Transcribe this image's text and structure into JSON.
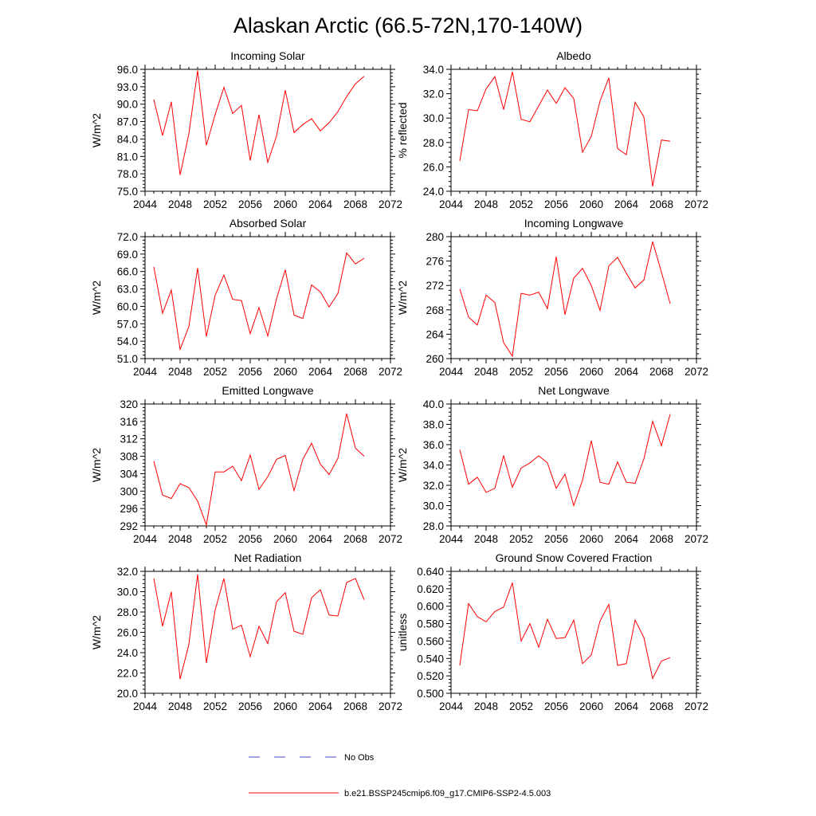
{
  "figure": {
    "title": "Alaskan Arctic (66.5-72N,170-140W)",
    "series_color": "#ff0000",
    "obs_color": "#4444cc"
  },
  "legend": {
    "items": [
      {
        "label": "No Obs",
        "style": "dashed",
        "color": "#4444cc"
      },
      {
        "label": "b.e21.BSSP245cmip6.f09_g17.CMIP6-SSP2-4.5.003",
        "style": "solid",
        "color": "#ff0000"
      }
    ]
  },
  "chart_data": [
    {
      "type": "line",
      "title": "Incoming Solar",
      "xlabel": "",
      "ylabel": "W/m^2",
      "xlim": [
        2044,
        2072
      ],
      "ylim": [
        75,
        96
      ],
      "xticks": [
        2044,
        2048,
        2052,
        2056,
        2060,
        2064,
        2068,
        2072
      ],
      "xtick_labels": [
        "2044",
        "2048",
        "2052",
        "2056",
        "2060",
        "2064",
        "2068",
        "2072"
      ],
      "yticks": [
        75,
        78,
        81,
        84,
        87,
        90,
        93,
        96
      ],
      "ytick_labels": [
        "75.0",
        "78.0",
        "81.0",
        "84.0",
        "87.0",
        "90.0",
        "93.0",
        "96.0"
      ],
      "x": [
        2045,
        2046,
        2047,
        2048,
        2049,
        2050,
        2051,
        2052,
        2053,
        2054,
        2055,
        2056,
        2057,
        2058,
        2059,
        2060,
        2061,
        2062,
        2063,
        2064,
        2065,
        2066,
        2067,
        2068,
        2069
      ],
      "series": [
        {
          "name": "b.e21.BSSP245cmip6.f09_g17.CMIP6-SSP2-4.5.003",
          "values": [
            90.8,
            84.6,
            90.4,
            77.8,
            84.9,
            95.8,
            82.9,
            88.2,
            92.9,
            88.4,
            89.8,
            80.3,
            88.2,
            80.0,
            84.5,
            92.4,
            85.1,
            86.5,
            87.5,
            85.4,
            86.8,
            88.7,
            91.3,
            93.5,
            94.8
          ]
        }
      ]
    },
    {
      "type": "line",
      "title": "Albedo",
      "xlabel": "",
      "ylabel": "% reflected",
      "xlim": [
        2044,
        2072
      ],
      "ylim": [
        24,
        34
      ],
      "xticks": [
        2044,
        2048,
        2052,
        2056,
        2060,
        2064,
        2068,
        2072
      ],
      "xtick_labels": [
        "2044",
        "2048",
        "2052",
        "2056",
        "2060",
        "2064",
        "2068",
        "2072"
      ],
      "yticks": [
        24,
        26,
        28,
        30,
        32,
        34
      ],
      "ytick_labels": [
        "24.0",
        "26.0",
        "28.0",
        "30.0",
        "32.0",
        "34.0"
      ],
      "x": [
        2045,
        2046,
        2047,
        2048,
        2049,
        2050,
        2051,
        2052,
        2053,
        2054,
        2055,
        2056,
        2057,
        2058,
        2059,
        2060,
        2061,
        2062,
        2063,
        2064,
        2065,
        2066,
        2067,
        2068,
        2069
      ],
      "series": [
        {
          "name": "b.e21.BSSP245cmip6.f09_g17.CMIP6-SSP2-4.5.003",
          "values": [
            26.5,
            30.7,
            30.6,
            32.4,
            33.4,
            30.7,
            33.8,
            29.9,
            29.7,
            31.0,
            32.3,
            31.2,
            32.5,
            31.6,
            27.2,
            28.5,
            31.4,
            33.3,
            27.5,
            27.0,
            31.3,
            30.1,
            24.4,
            28.2,
            28.1
          ]
        }
      ]
    },
    {
      "type": "line",
      "title": "Absorbed Solar",
      "xlabel": "",
      "ylabel": "W/m^2",
      "xlim": [
        2044,
        2072
      ],
      "ylim": [
        51,
        72
      ],
      "xticks": [
        2044,
        2048,
        2052,
        2056,
        2060,
        2064,
        2068,
        2072
      ],
      "xtick_labels": [
        "2044",
        "2048",
        "2052",
        "2056",
        "2060",
        "2064",
        "2068",
        "2072"
      ],
      "yticks": [
        51,
        54,
        57,
        60,
        63,
        66,
        69,
        72
      ],
      "ytick_labels": [
        "51.0",
        "54.0",
        "57.0",
        "60.0",
        "63.0",
        "66.0",
        "69.0",
        "72.0"
      ],
      "x": [
        2045,
        2046,
        2047,
        2048,
        2049,
        2050,
        2051,
        2052,
        2053,
        2054,
        2055,
        2056,
        2057,
        2058,
        2059,
        2060,
        2061,
        2062,
        2063,
        2064,
        2065,
        2066,
        2067,
        2068,
        2069
      ],
      "series": [
        {
          "name": "b.e21.BSSP245cmip6.f09_g17.CMIP6-SSP2-4.5.003",
          "values": [
            66.8,
            58.8,
            62.8,
            52.6,
            56.5,
            66.6,
            54.8,
            61.9,
            65.4,
            61.2,
            61.0,
            55.3,
            59.8,
            54.9,
            61.3,
            66.3,
            58.5,
            57.9,
            63.7,
            62.5,
            59.9,
            62.2,
            69.2,
            67.3,
            68.3
          ]
        }
      ]
    },
    {
      "type": "line",
      "title": "Incoming Longwave",
      "xlabel": "",
      "ylabel": "W/m^2",
      "xlim": [
        2044,
        2072
      ],
      "ylim": [
        260,
        280
      ],
      "xticks": [
        2044,
        2048,
        2052,
        2056,
        2060,
        2064,
        2068,
        2072
      ],
      "xtick_labels": [
        "2044",
        "2048",
        "2052",
        "2056",
        "2060",
        "2064",
        "2068",
        "2072"
      ],
      "yticks": [
        260,
        264,
        268,
        272,
        276,
        280
      ],
      "ytick_labels": [
        "260",
        "264",
        "268",
        "272",
        "276",
        "280"
      ],
      "x": [
        2045,
        2046,
        2047,
        2048,
        2049,
        2050,
        2051,
        2052,
        2053,
        2054,
        2055,
        2056,
        2057,
        2058,
        2059,
        2060,
        2061,
        2062,
        2063,
        2064,
        2065,
        2066,
        2067,
        2068,
        2069
      ],
      "series": [
        {
          "name": "b.e21.BSSP245cmip6.f09_g17.CMIP6-SSP2-4.5.003",
          "values": [
            271.4,
            266.8,
            265.5,
            270.4,
            269.2,
            262.6,
            260.4,
            270.7,
            270.4,
            270.9,
            268.2,
            276.7,
            267.2,
            273.2,
            274.8,
            272.0,
            267.9,
            275.2,
            276.6,
            274.0,
            271.6,
            272.9,
            279.2,
            274.2,
            269.0
          ]
        }
      ]
    },
    {
      "type": "line",
      "title": "Emitted Longwave",
      "xlabel": "",
      "ylabel": "W/m^2",
      "xlim": [
        2044,
        2072
      ],
      "ylim": [
        292,
        320
      ],
      "xticks": [
        2044,
        2048,
        2052,
        2056,
        2060,
        2064,
        2068,
        2072
      ],
      "xtick_labels": [
        "2044",
        "2048",
        "2052",
        "2056",
        "2060",
        "2064",
        "2068",
        "2072"
      ],
      "yticks": [
        292,
        296,
        300,
        304,
        308,
        312,
        316,
        320
      ],
      "ytick_labels": [
        "292",
        "296",
        "300",
        "304",
        "308",
        "312",
        "316",
        "320"
      ],
      "x": [
        2045,
        2046,
        2047,
        2048,
        2049,
        2050,
        2051,
        2052,
        2053,
        2054,
        2055,
        2056,
        2057,
        2058,
        2059,
        2060,
        2061,
        2062,
        2063,
        2064,
        2065,
        2066,
        2067,
        2068,
        2069
      ],
      "series": [
        {
          "name": "b.e21.BSSP245cmip6.f09_g17.CMIP6-SSP2-4.5.003",
          "values": [
            306.9,
            299.1,
            298.3,
            301.7,
            300.8,
            297.7,
            292.2,
            304.4,
            304.4,
            305.7,
            302.4,
            308.3,
            300.4,
            303.3,
            307.3,
            308.2,
            300.1,
            307.3,
            311.0,
            306.2,
            303.8,
            307.5,
            317.8,
            309.9,
            308.0
          ]
        }
      ]
    },
    {
      "type": "line",
      "title": "Net Longwave",
      "xlabel": "",
      "ylabel": "W/m^2",
      "xlim": [
        2044,
        2072
      ],
      "ylim": [
        28,
        40
      ],
      "xticks": [
        2044,
        2048,
        2052,
        2056,
        2060,
        2064,
        2068,
        2072
      ],
      "xtick_labels": [
        "2044",
        "2048",
        "2052",
        "2056",
        "2060",
        "2064",
        "2068",
        "2072"
      ],
      "yticks": [
        28,
        30,
        32,
        34,
        36,
        38,
        40
      ],
      "ytick_labels": [
        "28.0",
        "30.0",
        "32.0",
        "34.0",
        "36.0",
        "38.0",
        "40.0"
      ],
      "x": [
        2045,
        2046,
        2047,
        2048,
        2049,
        2050,
        2051,
        2052,
        2053,
        2054,
        2055,
        2056,
        2057,
        2058,
        2059,
        2060,
        2061,
        2062,
        2063,
        2064,
        2065,
        2066,
        2067,
        2068,
        2069
      ],
      "series": [
        {
          "name": "b.e21.BSSP245cmip6.f09_g17.CMIP6-SSP2-4.5.003",
          "values": [
            35.5,
            32.1,
            32.8,
            31.3,
            31.7,
            34.9,
            31.8,
            33.7,
            34.2,
            34.9,
            34.2,
            31.7,
            33.1,
            30.0,
            32.5,
            36.4,
            32.3,
            32.1,
            34.3,
            32.3,
            32.2,
            34.6,
            38.3,
            35.9,
            39.0
          ]
        }
      ]
    },
    {
      "type": "line",
      "title": "Net Radiation",
      "xlabel": "",
      "ylabel": "W/m^2",
      "xlim": [
        2044,
        2072
      ],
      "ylim": [
        20,
        32
      ],
      "xticks": [
        2044,
        2048,
        2052,
        2056,
        2060,
        2064,
        2068,
        2072
      ],
      "xtick_labels": [
        "2044",
        "2048",
        "2052",
        "2056",
        "2060",
        "2064",
        "2068",
        "2072"
      ],
      "yticks": [
        20,
        22,
        24,
        26,
        28,
        30,
        32
      ],
      "ytick_labels": [
        "20.0",
        "22.0",
        "24.0",
        "26.0",
        "28.0",
        "30.0",
        "32.0"
      ],
      "x": [
        2045,
        2046,
        2047,
        2048,
        2049,
        2050,
        2051,
        2052,
        2053,
        2054,
        2055,
        2056,
        2057,
        2058,
        2059,
        2060,
        2061,
        2062,
        2063,
        2064,
        2065,
        2066,
        2067,
        2068,
        2069
      ],
      "series": [
        {
          "name": "b.e21.BSSP245cmip6.f09_g17.CMIP6-SSP2-4.5.003",
          "values": [
            31.3,
            26.6,
            30.0,
            21.4,
            24.8,
            31.7,
            23.0,
            28.2,
            31.3,
            26.3,
            26.7,
            23.6,
            26.6,
            24.9,
            29.0,
            29.9,
            26.1,
            25.8,
            29.4,
            30.2,
            27.7,
            27.6,
            30.9,
            31.3,
            29.2
          ]
        }
      ]
    },
    {
      "type": "line",
      "title": "Ground Snow Covered Fraction",
      "xlabel": "",
      "ylabel": "unitless",
      "xlim": [
        2044,
        2072
      ],
      "ylim": [
        0.5,
        0.64
      ],
      "xticks": [
        2044,
        2048,
        2052,
        2056,
        2060,
        2064,
        2068,
        2072
      ],
      "xtick_labels": [
        "2044",
        "2048",
        "2052",
        "2056",
        "2060",
        "2064",
        "2068",
        "2072"
      ],
      "yticks": [
        0.5,
        0.52,
        0.54,
        0.56,
        0.58,
        0.6,
        0.62,
        0.64
      ],
      "ytick_labels": [
        "0.500",
        "0.520",
        "0.540",
        "0.560",
        "0.580",
        "0.600",
        "0.620",
        "0.640"
      ],
      "x": [
        2045,
        2046,
        2047,
        2048,
        2049,
        2050,
        2051,
        2052,
        2053,
        2054,
        2055,
        2056,
        2057,
        2058,
        2059,
        2060,
        2061,
        2062,
        2063,
        2064,
        2065,
        2066,
        2067,
        2068,
        2069
      ],
      "series": [
        {
          "name": "b.e21.BSSP245cmip6.f09_g17.CMIP6-SSP2-4.5.003",
          "values": [
            0.532,
            0.603,
            0.588,
            0.582,
            0.594,
            0.599,
            0.627,
            0.56,
            0.58,
            0.553,
            0.585,
            0.563,
            0.564,
            0.584,
            0.534,
            0.544,
            0.583,
            0.602,
            0.532,
            0.534,
            0.584,
            0.564,
            0.517,
            0.537,
            0.541
          ]
        }
      ]
    }
  ]
}
